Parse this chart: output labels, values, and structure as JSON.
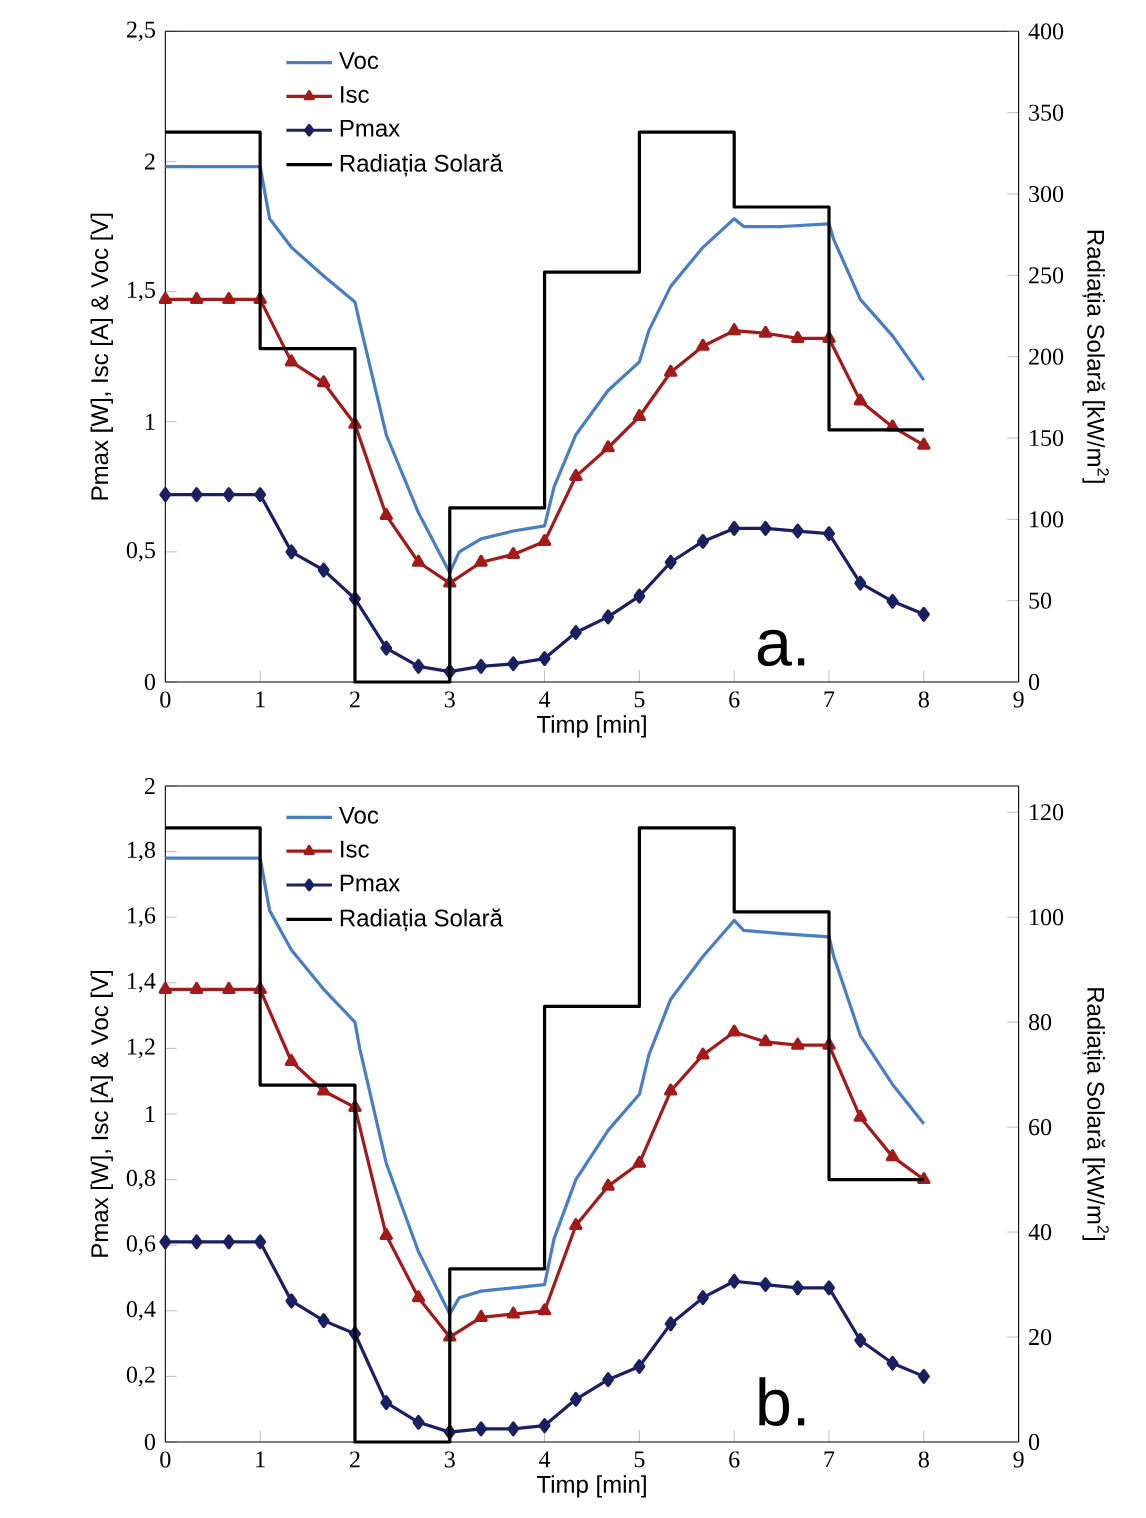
{
  "chart_data": [
    {
      "type": "line",
      "xlabel": "Timp [min]",
      "ylabel": "Pmax [W], Isc [A] & Voc [V]",
      "y2label": "Radiația Solară [kW/m$^{2}$]",
      "annotations": [
        "a."
      ],
      "legend": "top left",
      "xlim": [
        0,
        9
      ],
      "xticks": [
        0,
        1,
        2,
        3,
        4,
        5,
        6,
        7,
        8,
        9
      ],
      "ylim": [
        0,
        2.5
      ],
      "yticks": [
        0,
        {
          "value": 0.5,
          "label": "0,5"
        },
        1,
        {
          "value": 1.5,
          "label": "1,5"
        },
        2,
        {
          "value": 2.5,
          "label": "2,5"
        }
      ],
      "y2lim": [
        0,
        400
      ],
      "y2ticks": [
        0,
        50,
        100,
        150,
        200,
        250,
        300,
        350,
        400
      ],
      "series": [
        {
          "name": "Voc",
          "type": "line",
          "marker": "none",
          "color": "#4a7ec4",
          "x": [
            0,
            1,
            1.1,
            1.33,
            1.67,
            2,
            2.05,
            2.33,
            2.67,
            3,
            3.1,
            3.33,
            3.67,
            4,
            4.1,
            4.33,
            4.67,
            5,
            5.1,
            5.33,
            5.67,
            6,
            6.1,
            6.5,
            7,
            7.05,
            7.33,
            7.67,
            8
          ],
          "values": [
            1.98,
            1.98,
            1.78,
            1.67,
            1.56,
            1.46,
            1.38,
            0.95,
            0.65,
            0.42,
            0.5,
            0.55,
            0.58,
            0.6,
            0.75,
            0.95,
            1.12,
            1.23,
            1.35,
            1.52,
            1.67,
            1.78,
            1.75,
            1.75,
            1.76,
            1.7,
            1.47,
            1.33,
            1.16
          ]
        },
        {
          "name": "Isc",
          "type": "line",
          "marker": "triangle",
          "color": "#a31a1a",
          "x": [
            0,
            0.33,
            0.67,
            1,
            1.33,
            1.67,
            2,
            2.33,
            2.67,
            3,
            3.33,
            3.67,
            4,
            4.33,
            4.67,
            5,
            5.33,
            5.67,
            6,
            6.33,
            6.67,
            7,
            7.33,
            7.67,
            8
          ],
          "values": [
            1.47,
            1.47,
            1.47,
            1.47,
            1.23,
            1.15,
            0.99,
            0.64,
            0.46,
            0.38,
            0.46,
            0.49,
            0.54,
            0.79,
            0.9,
            1.02,
            1.19,
            1.29,
            1.35,
            1.34,
            1.32,
            1.32,
            1.08,
            0.98,
            0.91
          ]
        },
        {
          "name": "Pmax",
          "type": "line",
          "marker": "diamond",
          "color": "#1a2060",
          "x": [
            0,
            0.33,
            0.67,
            1,
            1.33,
            1.67,
            2,
            2.33,
            2.67,
            3,
            3.33,
            3.67,
            4,
            4.33,
            4.67,
            5,
            5.33,
            5.67,
            6,
            6.33,
            6.67,
            7,
            7.33,
            7.67,
            8
          ],
          "values": [
            0.72,
            0.72,
            0.72,
            0.72,
            0.5,
            0.43,
            0.32,
            0.13,
            0.06,
            0.04,
            0.06,
            0.07,
            0.09,
            0.19,
            0.25,
            0.33,
            0.46,
            0.54,
            0.59,
            0.59,
            0.58,
            0.57,
            0.38,
            0.31,
            0.26
          ]
        },
        {
          "name": "Radiația Solară",
          "type": "step",
          "axis": "y2",
          "marker": "none",
          "color": "#000000",
          "x": [
            0,
            1,
            2,
            3,
            4,
            5,
            6,
            7,
            8
          ],
          "values": [
            338,
            205,
            0,
            107,
            252,
            338,
            292,
            155,
            155
          ]
        }
      ]
    },
    {
      "type": "line",
      "xlabel": "Timp [min]",
      "ylabel": "Pmax [W], Isc [A] & Voc [V]",
      "y2label": "Radiația Solară [kW/m$^{2}$]",
      "annotations": [
        "b."
      ],
      "legend": "top left",
      "xlim": [
        0,
        9
      ],
      "xticks": [
        0,
        1,
        2,
        3,
        4,
        5,
        6,
        7,
        8,
        9
      ],
      "ylim": [
        0,
        2
      ],
      "yticks": [
        0,
        {
          "value": 0.2,
          "label": "0,2"
        },
        {
          "value": 0.4,
          "label": "0,4"
        },
        {
          "value": 0.6,
          "label": "0,6"
        },
        {
          "value": 0.8,
          "label": "0,8"
        },
        1,
        {
          "value": 1.2,
          "label": "1,2"
        },
        {
          "value": 1.4,
          "label": "1,4"
        },
        {
          "value": 1.6,
          "label": "1,6"
        },
        {
          "value": 1.8,
          "label": "1,8"
        },
        2
      ],
      "y2lim": [
        0,
        125
      ],
      "y2ticks": [
        0,
        20,
        40,
        60,
        80,
        100,
        120
      ],
      "series": [
        {
          "name": "Voc",
          "type": "line",
          "marker": "none",
          "color": "#4a7ec4",
          "x": [
            0,
            1,
            1.1,
            1.33,
            1.67,
            2,
            2.05,
            2.33,
            2.67,
            3,
            3.1,
            3.33,
            3.67,
            4,
            4.1,
            4.33,
            4.67,
            5,
            5.1,
            5.33,
            5.67,
            6,
            6.1,
            6.5,
            7,
            7.05,
            7.33,
            7.67,
            8
          ],
          "values": [
            1.78,
            1.78,
            1.62,
            1.5,
            1.38,
            1.28,
            1.2,
            0.85,
            0.58,
            0.39,
            0.44,
            0.46,
            0.47,
            0.48,
            0.62,
            0.8,
            0.95,
            1.06,
            1.18,
            1.35,
            1.48,
            1.59,
            1.56,
            1.55,
            1.54,
            1.48,
            1.24,
            1.09,
            0.97
          ]
        },
        {
          "name": "Isc",
          "type": "line",
          "marker": "triangle",
          "color": "#a31a1a",
          "x": [
            0,
            0.33,
            0.67,
            1,
            1.33,
            1.67,
            2,
            2.33,
            2.67,
            3,
            3.33,
            3.67,
            4,
            4.33,
            4.67,
            5,
            5.33,
            5.67,
            6,
            6.33,
            6.67,
            7,
            7.33,
            7.67,
            8
          ],
          "values": [
            1.38,
            1.38,
            1.38,
            1.38,
            1.16,
            1.07,
            1.02,
            0.63,
            0.44,
            0.32,
            0.38,
            0.39,
            0.4,
            0.66,
            0.78,
            0.85,
            1.07,
            1.18,
            1.25,
            1.22,
            1.21,
            1.21,
            0.99,
            0.87,
            0.8
          ]
        },
        {
          "name": "Pmax",
          "type": "line",
          "marker": "diamond",
          "color": "#1a2060",
          "x": [
            0,
            0.33,
            0.67,
            1,
            1.33,
            1.67,
            2,
            2.33,
            2.67,
            3,
            3.33,
            3.67,
            4,
            4.33,
            4.67,
            5,
            5.33,
            5.67,
            6,
            6.33,
            6.67,
            7,
            7.33,
            7.67,
            8
          ],
          "values": [
            0.61,
            0.61,
            0.61,
            0.61,
            0.43,
            0.37,
            0.33,
            0.12,
            0.06,
            0.03,
            0.04,
            0.04,
            0.05,
            0.13,
            0.19,
            0.23,
            0.36,
            0.44,
            0.49,
            0.48,
            0.47,
            0.47,
            0.31,
            0.24,
            0.2
          ]
        },
        {
          "name": "Radiația Solară",
          "type": "step",
          "axis": "y2",
          "marker": "none",
          "color": "#000000",
          "x": [
            0,
            1,
            2,
            3,
            4,
            5,
            6,
            7,
            8
          ],
          "values": [
            117,
            68,
            0,
            33,
            83,
            117,
            101,
            50,
            50
          ]
        }
      ]
    }
  ]
}
